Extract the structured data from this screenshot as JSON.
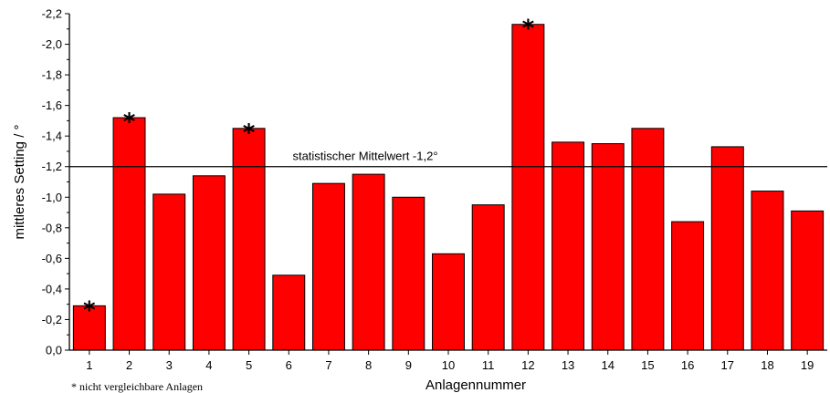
{
  "chart_data": {
    "type": "bar",
    "categories": [
      "1",
      "2",
      "3",
      "4",
      "5",
      "6",
      "7",
      "8",
      "9",
      "10",
      "11",
      "12",
      "13",
      "14",
      "15",
      "16",
      "17",
      "18",
      "19"
    ],
    "values": [
      -0.29,
      -1.52,
      -1.02,
      -1.14,
      -1.45,
      -0.49,
      -1.09,
      -1.15,
      -1.0,
      -0.63,
      -0.95,
      -2.13,
      -1.36,
      -1.35,
      -1.45,
      -0.84,
      -1.33,
      -1.04,
      -0.91
    ],
    "marked": [
      true,
      true,
      false,
      false,
      true,
      false,
      false,
      false,
      false,
      false,
      false,
      true,
      false,
      false,
      false,
      false,
      false,
      false,
      false
    ],
    "marker_symbol": "*",
    "xlabel": "Anlagennummer",
    "ylabel": "mittleres Setting / °",
    "ylim": [
      0,
      -2.2
    ],
    "y_axis_inverted": true,
    "y_ticks": [
      0,
      -0.2,
      -0.4,
      -0.6,
      -0.8,
      -1.0,
      -1.2,
      -1.4,
      -1.6,
      -1.8,
      -2.0,
      -2.2
    ],
    "y_tick_labels": [
      "0,0",
      "-0,2",
      "-0,4",
      "-0,6",
      "-0,8",
      "-1,0",
      "-1,2",
      "-1,4",
      "-1,6",
      "-1,8",
      "-2,0",
      "-2,2"
    ],
    "reference_line": {
      "value": -1.2,
      "label": "statistischer Mittelwert  -1,2°"
    },
    "footnote": "* nicht vergleichbare Anlagen",
    "bar_color": "#ff0000",
    "bar_stroke": "#000000",
    "grid": false
  }
}
